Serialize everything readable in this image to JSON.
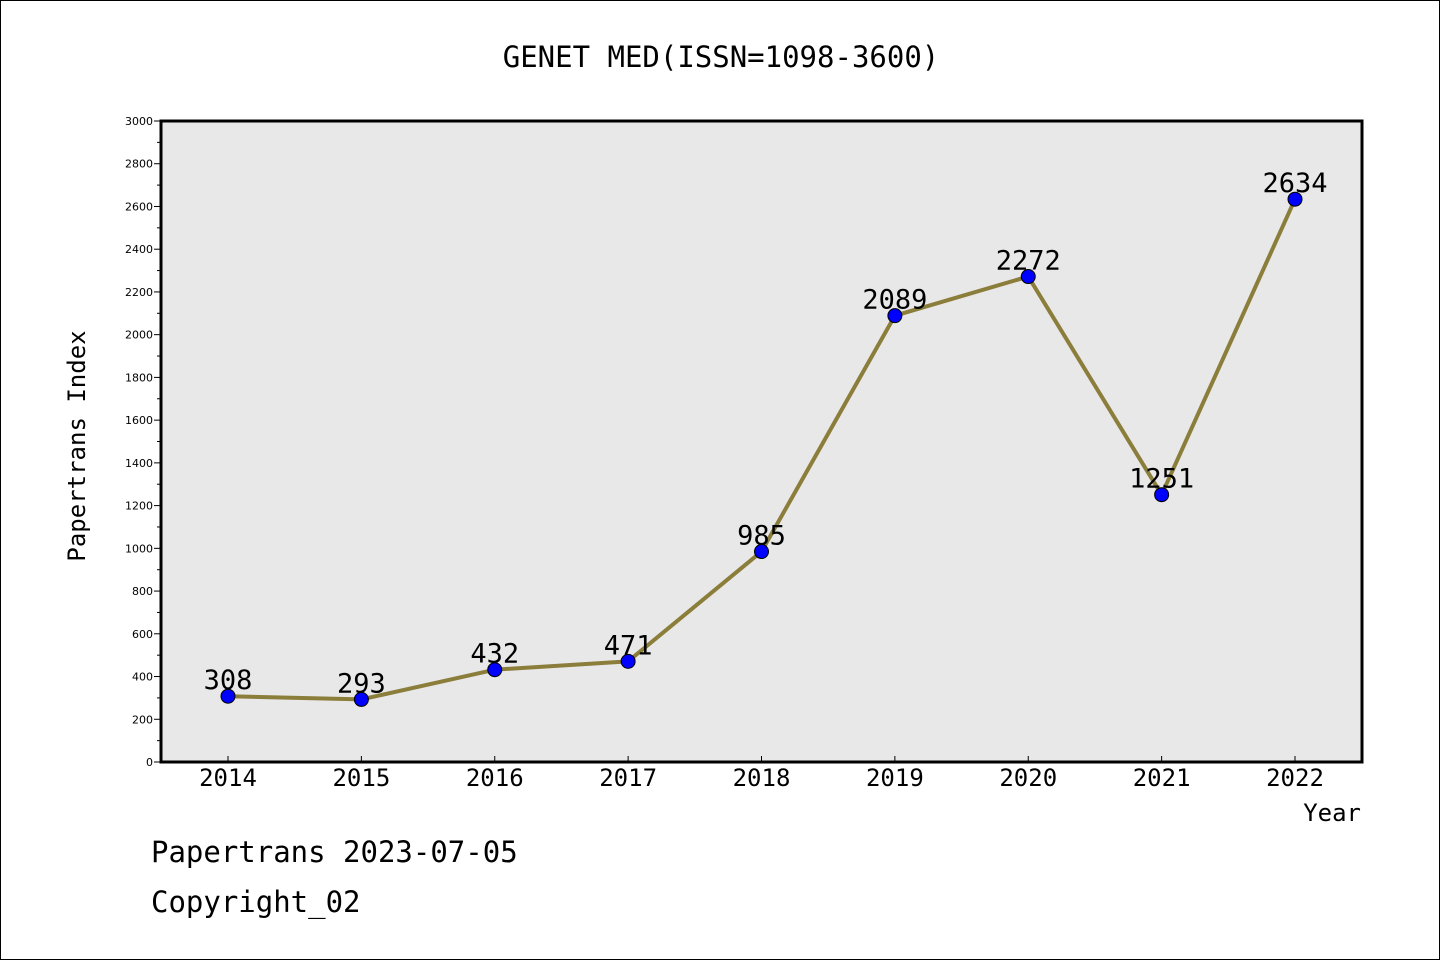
{
  "chart_data": {
    "type": "line",
    "title": "GENET MED(ISSN=1098-3600)",
    "xlabel": "Year",
    "ylabel": "Papertrans Index",
    "categories": [
      "2014",
      "2015",
      "2016",
      "2017",
      "2018",
      "2019",
      "2020",
      "2021",
      "2022"
    ],
    "series": [
      {
        "values": [
          308,
          293,
          432,
          471,
          985,
          2089,
          2272,
          1251,
          2634
        ],
        "labels": [
          "308",
          "293",
          "432",
          "471",
          "985",
          "2089",
          "2272",
          "1251",
          "2634"
        ]
      }
    ],
    "ylim": [
      0,
      3000
    ],
    "yticks": [
      0,
      200,
      400,
      600,
      800,
      1000,
      1200,
      1400,
      1600,
      1800,
      2000,
      2200,
      2400,
      2600,
      2800,
      3000
    ],
    "ytick_labels": [
      "0",
      "200",
      "400",
      "600",
      "800",
      "1000",
      "1200",
      "1400",
      "1600",
      "1800",
      "2000",
      "2200",
      "2400",
      "2600",
      "2800",
      "3000"
    ],
    "grid": false,
    "legend": "none",
    "colors": {
      "line": "#8b7d3a",
      "marker": "#0000ff",
      "plot_background": "#e8e8e8"
    }
  },
  "footer": {
    "line1": "Papertrans 2023-07-05",
    "line2": "Copyright_02"
  }
}
